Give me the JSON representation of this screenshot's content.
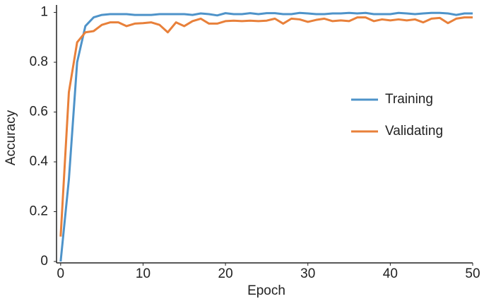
{
  "chart_data": {
    "type": "line",
    "x_label": "Epoch",
    "y_label": "Accuracy",
    "x": [
      0,
      1,
      2,
      3,
      4,
      5,
      6,
      7,
      8,
      9,
      10,
      11,
      12,
      13,
      14,
      15,
      16,
      17,
      18,
      19,
      20,
      21,
      22,
      23,
      24,
      25,
      26,
      27,
      28,
      29,
      30,
      31,
      32,
      33,
      34,
      35,
      36,
      37,
      38,
      39,
      40,
      41,
      42,
      43,
      44,
      45,
      46,
      47,
      48,
      49,
      50
    ],
    "series": [
      {
        "name": "Training",
        "color": "#4e93c9",
        "values": [
          0.0,
          0.33,
          0.8,
          0.945,
          0.98,
          0.99,
          0.993,
          0.993,
          0.993,
          0.99,
          0.99,
          0.99,
          0.993,
          0.993,
          0.993,
          0.993,
          0.99,
          0.996,
          0.993,
          0.988,
          0.997,
          0.993,
          0.993,
          0.997,
          0.993,
          0.997,
          0.997,
          0.993,
          0.993,
          0.998,
          0.996,
          0.993,
          0.993,
          0.996,
          0.996,
          0.998,
          0.996,
          0.998,
          0.993,
          0.993,
          0.993,
          0.998,
          0.996,
          0.993,
          0.996,
          0.998,
          0.998,
          0.996,
          0.99,
          0.996,
          0.996
        ]
      },
      {
        "name": "Validating",
        "color": "#e8803a",
        "values": [
          0.1,
          0.68,
          0.88,
          0.92,
          0.925,
          0.95,
          0.96,
          0.96,
          0.945,
          0.955,
          0.957,
          0.96,
          0.95,
          0.92,
          0.96,
          0.945,
          0.965,
          0.975,
          0.955,
          0.955,
          0.965,
          0.967,
          0.965,
          0.967,
          0.965,
          0.967,
          0.975,
          0.955,
          0.975,
          0.972,
          0.962,
          0.97,
          0.975,
          0.965,
          0.968,
          0.965,
          0.98,
          0.98,
          0.965,
          0.972,
          0.968,
          0.972,
          0.968,
          0.972,
          0.96,
          0.975,
          0.978,
          0.957,
          0.975,
          0.98,
          0.98
        ]
      }
    ],
    "xlim": [
      -0.5,
      50
    ],
    "ylim": [
      0,
      1.03
    ],
    "xticks": [
      0,
      10,
      20,
      30,
      40,
      50
    ],
    "yticks": [
      0,
      0.2,
      0.4,
      0.6,
      0.8,
      1
    ],
    "legend": "right"
  }
}
